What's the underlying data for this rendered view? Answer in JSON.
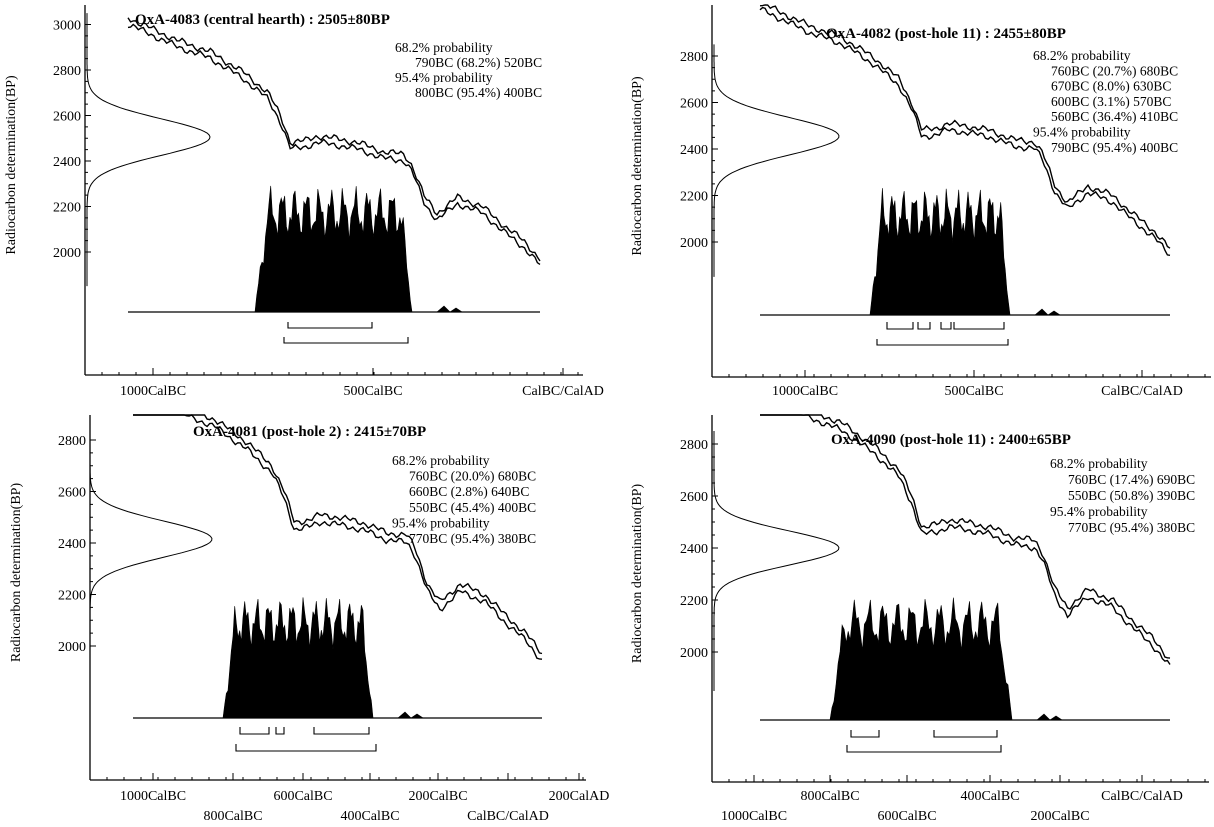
{
  "chart_data": [
    {
      "type": "line",
      "title": "OxA-4083 (central hearth) : 2505±80BP",
      "ylabel": "Radiocarbon determination(BP)",
      "yticks": [
        2000,
        2200,
        2400,
        2600,
        2800,
        3000
      ],
      "xticks": [
        {
          "label": "1000CalBC",
          "row": 0
        },
        {
          "label": "500CalBC",
          "row": 0
        },
        {
          "label": "CalBC/CalAD",
          "row": 0
        }
      ],
      "annotations": [
        {
          "text": "68.2% probability",
          "indent": false
        },
        {
          "text": "790BC (68.2%) 520BC",
          "indent": true
        },
        {
          "text": "95.4% probability",
          "indent": false
        },
        {
          "text": "800BC (95.4%) 400BC",
          "indent": true
        }
      ],
      "measurement": {
        "mean_bp": 2505,
        "sigma_bp": 80
      }
    },
    {
      "type": "line",
      "title": "OxA-4082 (post-hole 11) : 2455±80BP",
      "ylabel": "Radiocarbon determination(BP)",
      "yticks": [
        2000,
        2200,
        2400,
        2600,
        2800
      ],
      "xticks": [
        {
          "label": "1000CalBC",
          "row": 0
        },
        {
          "label": "500CalBC",
          "row": 0
        },
        {
          "label": "CalBC/CalAD",
          "row": 0
        }
      ],
      "annotations": [
        {
          "text": "68.2% probability",
          "indent": false
        },
        {
          "text": "760BC (20.7%) 680BC",
          "indent": true
        },
        {
          "text": "670BC (8.0%) 630BC",
          "indent": true
        },
        {
          "text": "600BC (3.1%) 570BC",
          "indent": true
        },
        {
          "text": "560BC (36.4%) 410BC",
          "indent": true
        },
        {
          "text": "95.4% probability",
          "indent": false
        },
        {
          "text": "790BC (95.4%) 400BC",
          "indent": true
        }
      ],
      "measurement": {
        "mean_bp": 2455,
        "sigma_bp": 80
      }
    },
    {
      "type": "line",
      "title": "OxA-4081 (post-hole 2) : 2415±70BP",
      "ylabel": "Radiocarbon determination(BP)",
      "yticks": [
        2000,
        2200,
        2400,
        2600,
        2800
      ],
      "xticks": [
        {
          "label": "1000CalBC",
          "row": 0
        },
        {
          "label": "800CalBC",
          "row": 1
        },
        {
          "label": "600CalBC",
          "row": 0
        },
        {
          "label": "400CalBC",
          "row": 1
        },
        {
          "label": "200CalBC",
          "row": 0
        },
        {
          "label": "CalBC/CalAD",
          "row": 1
        },
        {
          "label": "200CalAD",
          "row": 0
        }
      ],
      "annotations": [
        {
          "text": "68.2% probability",
          "indent": false
        },
        {
          "text": "760BC (20.0%) 680BC",
          "indent": true
        },
        {
          "text": "660BC (2.8%) 640BC",
          "indent": true
        },
        {
          "text": "550BC (45.4%) 400BC",
          "indent": true
        },
        {
          "text": "95.4% probability",
          "indent": false
        },
        {
          "text": "770BC (95.4%) 380BC",
          "indent": true
        }
      ],
      "measurement": {
        "mean_bp": 2415,
        "sigma_bp": 70
      }
    },
    {
      "type": "line",
      "title": "OxA-4090 (post-hole 11) : 2400±65BP",
      "ylabel": "Radiocarbon determination(BP)",
      "yticks": [
        2000,
        2200,
        2400,
        2600,
        2800
      ],
      "xticks": [
        {
          "label": "1000CalBC",
          "row": 1
        },
        {
          "label": "800CalBC",
          "row": 0
        },
        {
          "label": "600CalBC",
          "row": 1
        },
        {
          "label": "400CalBC",
          "row": 0
        },
        {
          "label": "200CalBC",
          "row": 1
        },
        {
          "label": "CalBC/CalAD",
          "row": 0
        }
      ],
      "annotations": [
        {
          "text": "68.2% probability",
          "indent": false
        },
        {
          "text": "760BC (17.4%) 690BC",
          "indent": true
        },
        {
          "text": "550BC (50.8%) 390BC",
          "indent": true
        },
        {
          "text": "95.4% probability",
          "indent": false
        },
        {
          "text": "770BC (95.4%) 380BC",
          "indent": true
        }
      ],
      "measurement": {
        "mean_bp": 2400,
        "sigma_bp": 65
      }
    }
  ]
}
